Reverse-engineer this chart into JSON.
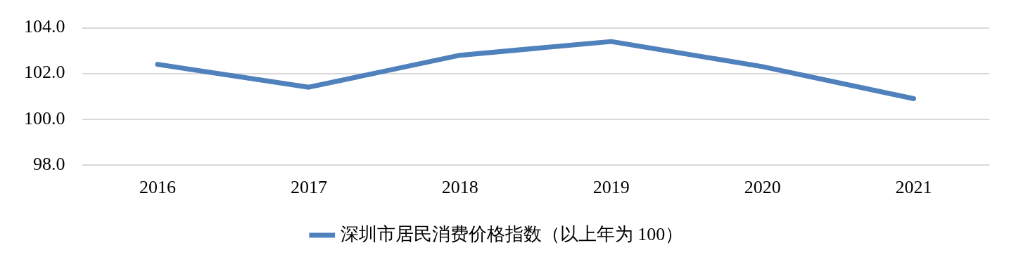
{
  "chart_data": {
    "type": "line",
    "categories": [
      "2016",
      "2017",
      "2018",
      "2019",
      "2020",
      "2021"
    ],
    "series": [
      {
        "name": "深圳市居民消费价格指数（以上年为 100）",
        "color": "#4f81bd",
        "values": [
          102.4,
          101.4,
          102.8,
          103.4,
          102.3,
          100.9
        ]
      }
    ],
    "ylim": [
      98,
      104
    ],
    "yticks": [
      {
        "value": 98,
        "label": "98.0"
      },
      {
        "value": 100,
        "label": "100.0"
      },
      {
        "value": 102,
        "label": "102.0"
      },
      {
        "value": 104,
        "label": "104.0"
      }
    ],
    "grid": "y",
    "legend": "bottom",
    "marker": "none",
    "line_style": "solid"
  }
}
